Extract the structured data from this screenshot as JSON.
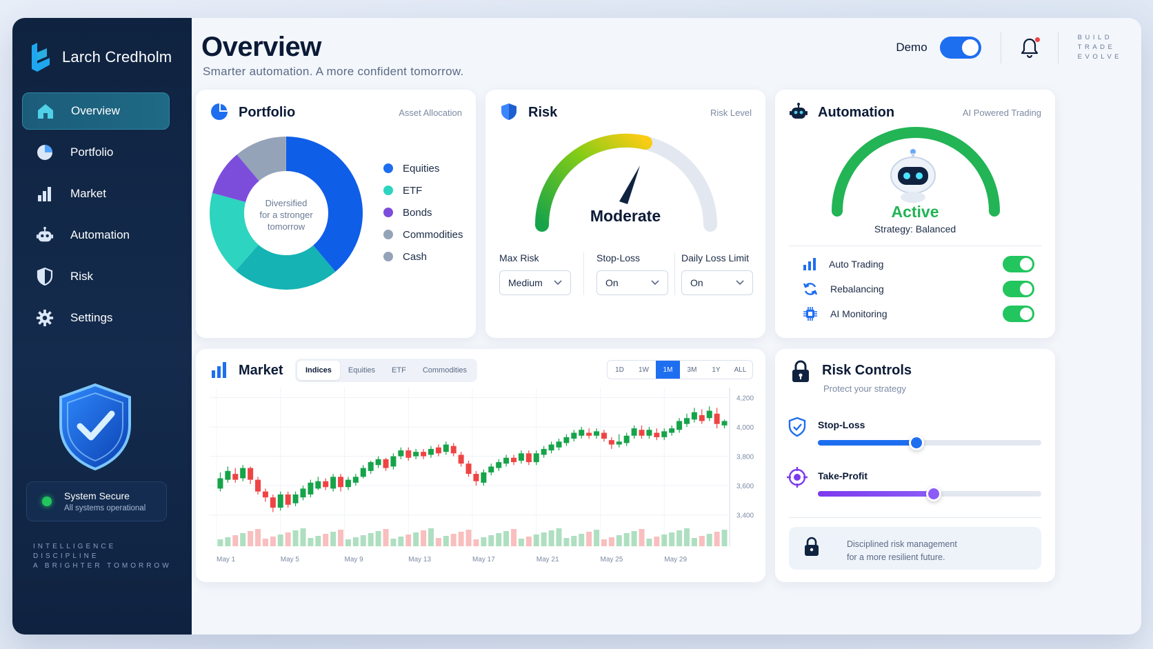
{
  "brand": {
    "name": "Larch Credholm"
  },
  "sidebar": {
    "items": [
      {
        "label": "Overview",
        "icon": "home-icon",
        "active": true
      },
      {
        "label": "Portfolio",
        "icon": "pie-chart-icon"
      },
      {
        "label": "Market",
        "icon": "bar-chart-icon"
      },
      {
        "label": "Automation",
        "icon": "robot-icon"
      },
      {
        "label": "Risk",
        "icon": "shield-icon"
      },
      {
        "label": "Settings",
        "icon": "gear-icon"
      }
    ],
    "status_title": "System Secure",
    "status_sub": "All systems operational",
    "tagline": [
      "INTELLIGENCE",
      "DISCIPLINE",
      "A BRIGHTER TOMORROW"
    ]
  },
  "header": {
    "title": "Overview",
    "subtitle": "Smarter automation. A more confident tomorrow.",
    "demo_label": "Demo",
    "demo_on": true,
    "motto": [
      "BUILD",
      "TRADE",
      "EVOLVE"
    ]
  },
  "portfolio": {
    "title": "Portfolio",
    "sub": "Asset Allocation",
    "center_text": [
      "Diversified",
      "for a stronger",
      "tomorrow"
    ],
    "legend": [
      {
        "label": "Equities",
        "color": "#1e6ef0"
      },
      {
        "label": "ETF",
        "color": "#2dd4bf"
      },
      {
        "label": "Bonds",
        "color": "#7c4ddb"
      },
      {
        "label": "Commodities",
        "color": "#94a3b8"
      },
      {
        "label": "Cash",
        "color": "#94a3b8"
      }
    ]
  },
  "risk": {
    "title": "Risk",
    "sub": "Risk Level",
    "level": "Moderate",
    "fields": [
      {
        "label": "Max Risk",
        "value": "Medium"
      },
      {
        "label": "Stop-Loss",
        "value": "On"
      },
      {
        "label": "Daily Loss Limit",
        "value": "On"
      }
    ]
  },
  "automation": {
    "title": "Automation",
    "sub": "AI Powered Trading",
    "status": "Active",
    "strategy": "Strategy: Balanced",
    "rows": [
      {
        "label": "Auto Trading",
        "icon": "bar-chart-icon",
        "on": true
      },
      {
        "label": "Rebalancing",
        "icon": "refresh-icon",
        "on": true
      },
      {
        "label": "AI Monitoring",
        "icon": "chip-icon",
        "on": true
      }
    ]
  },
  "market": {
    "title": "Market",
    "tabs": [
      "Indices",
      "Equities",
      "ETF",
      "Commodities"
    ],
    "active_tab": "Indices",
    "ranges": [
      "1D",
      "1W",
      "1M",
      "3M",
      "1Y",
      "ALL"
    ],
    "active_range": "1M"
  },
  "risk_controls": {
    "title": "Risk Controls",
    "sub": "Protect your strategy",
    "stop_loss_label": "Stop-Loss",
    "stop_loss_value": 0.44,
    "take_profit_label": "Take-Profit",
    "take_profit_value": 0.52,
    "note": [
      "Disciplined risk management",
      "for a more resilient future."
    ]
  },
  "chart_data": {
    "type": "candlestick",
    "title": "",
    "xlabel": "",
    "ylabel": "",
    "x_ticks": [
      "May 1",
      "May 5",
      "May 9",
      "May 13",
      "May 17",
      "May 21",
      "May 25",
      "May 29"
    ],
    "y_ticks": [
      "4,200",
      "4,000",
      "3,800",
      "3,600",
      "3,400"
    ],
    "ylim": [
      3300,
      4230
    ],
    "up_color": "#16a34a",
    "down_color": "#ef4444",
    "candles": [
      {
        "o": 3580,
        "c": 3650,
        "h": 3690,
        "l": 3560
      },
      {
        "o": 3640,
        "c": 3700,
        "h": 3730,
        "l": 3620
      },
      {
        "o": 3680,
        "c": 3640,
        "h": 3720,
        "l": 3620
      },
      {
        "o": 3650,
        "c": 3720,
        "h": 3740,
        "l": 3630
      },
      {
        "o": 3720,
        "c": 3640,
        "h": 3730,
        "l": 3610
      },
      {
        "o": 3640,
        "c": 3560,
        "h": 3660,
        "l": 3540
      },
      {
        "o": 3560,
        "c": 3520,
        "h": 3580,
        "l": 3490
      },
      {
        "o": 3520,
        "c": 3450,
        "h": 3540,
        "l": 3420
      },
      {
        "o": 3450,
        "c": 3540,
        "h": 3560,
        "l": 3430
      },
      {
        "o": 3540,
        "c": 3470,
        "h": 3560,
        "l": 3450
      },
      {
        "o": 3480,
        "c": 3540,
        "h": 3560,
        "l": 3460
      },
      {
        "o": 3520,
        "c": 3580,
        "h": 3600,
        "l": 3500
      },
      {
        "o": 3540,
        "c": 3620,
        "h": 3640,
        "l": 3520
      },
      {
        "o": 3580,
        "c": 3630,
        "h": 3660,
        "l": 3570
      },
      {
        "o": 3630,
        "c": 3590,
        "h": 3650,
        "l": 3570
      },
      {
        "o": 3580,
        "c": 3660,
        "h": 3680,
        "l": 3560
      },
      {
        "o": 3660,
        "c": 3590,
        "h": 3680,
        "l": 3560
      },
      {
        "o": 3590,
        "c": 3640,
        "h": 3660,
        "l": 3570
      },
      {
        "o": 3620,
        "c": 3660,
        "h": 3680,
        "l": 3600
      },
      {
        "o": 3660,
        "c": 3720,
        "h": 3740,
        "l": 3650
      },
      {
        "o": 3700,
        "c": 3760,
        "h": 3770,
        "l": 3680
      },
      {
        "o": 3740,
        "c": 3780,
        "h": 3800,
        "l": 3720
      },
      {
        "o": 3780,
        "c": 3720,
        "h": 3790,
        "l": 3700
      },
      {
        "o": 3730,
        "c": 3800,
        "h": 3820,
        "l": 3710
      },
      {
        "o": 3800,
        "c": 3840,
        "h": 3860,
        "l": 3780
      },
      {
        "o": 3840,
        "c": 3790,
        "h": 3860,
        "l": 3770
      },
      {
        "o": 3800,
        "c": 3830,
        "h": 3850,
        "l": 3780
      },
      {
        "o": 3830,
        "c": 3800,
        "h": 3850,
        "l": 3780
      },
      {
        "o": 3810,
        "c": 3850,
        "h": 3870,
        "l": 3790
      },
      {
        "o": 3860,
        "c": 3820,
        "h": 3880,
        "l": 3800
      },
      {
        "o": 3830,
        "c": 3880,
        "h": 3900,
        "l": 3810
      },
      {
        "o": 3870,
        "c": 3820,
        "h": 3890,
        "l": 3800
      },
      {
        "o": 3810,
        "c": 3750,
        "h": 3830,
        "l": 3730
      },
      {
        "o": 3750,
        "c": 3680,
        "h": 3770,
        "l": 3660
      },
      {
        "o": 3680,
        "c": 3630,
        "h": 3700,
        "l": 3600
      },
      {
        "o": 3620,
        "c": 3690,
        "h": 3710,
        "l": 3600
      },
      {
        "o": 3690,
        "c": 3730,
        "h": 3750,
        "l": 3670
      },
      {
        "o": 3720,
        "c": 3760,
        "h": 3780,
        "l": 3700
      },
      {
        "o": 3750,
        "c": 3790,
        "h": 3810,
        "l": 3730
      },
      {
        "o": 3790,
        "c": 3760,
        "h": 3810,
        "l": 3740
      },
      {
        "o": 3770,
        "c": 3820,
        "h": 3840,
        "l": 3750
      },
      {
        "o": 3820,
        "c": 3760,
        "h": 3840,
        "l": 3740
      },
      {
        "o": 3760,
        "c": 3820,
        "h": 3840,
        "l": 3740
      },
      {
        "o": 3810,
        "c": 3850,
        "h": 3870,
        "l": 3790
      },
      {
        "o": 3840,
        "c": 3880,
        "h": 3900,
        "l": 3820
      },
      {
        "o": 3860,
        "c": 3900,
        "h": 3920,
        "l": 3840
      },
      {
        "o": 3890,
        "c": 3930,
        "h": 3950,
        "l": 3870
      },
      {
        "o": 3920,
        "c": 3960,
        "h": 3980,
        "l": 3900
      },
      {
        "o": 3940,
        "c": 3980,
        "h": 4000,
        "l": 3920
      },
      {
        "o": 3960,
        "c": 3940,
        "h": 3990,
        "l": 3920
      },
      {
        "o": 3940,
        "c": 3970,
        "h": 3990,
        "l": 3920
      },
      {
        "o": 3960,
        "c": 3920,
        "h": 3980,
        "l": 3900
      },
      {
        "o": 3910,
        "c": 3880,
        "h": 3930,
        "l": 3850
      },
      {
        "o": 3880,
        "c": 3900,
        "h": 3950,
        "l": 3860
      },
      {
        "o": 3890,
        "c": 3940,
        "h": 3960,
        "l": 3870
      },
      {
        "o": 3940,
        "c": 3990,
        "h": 4010,
        "l": 3920
      },
      {
        "o": 3980,
        "c": 3940,
        "h": 4010,
        "l": 3920
      },
      {
        "o": 3940,
        "c": 3980,
        "h": 4000,
        "l": 3920
      },
      {
        "o": 3960,
        "c": 3930,
        "h": 3990,
        "l": 3910
      },
      {
        "o": 3930,
        "c": 3970,
        "h": 3990,
        "l": 3910
      },
      {
        "o": 3960,
        "c": 3990,
        "h": 4010,
        "l": 3940
      },
      {
        "o": 3980,
        "c": 4040,
        "h": 4060,
        "l": 3960
      },
      {
        "o": 4020,
        "c": 4060,
        "h": 4090,
        "l": 4000
      },
      {
        "o": 4050,
        "c": 4100,
        "h": 4130,
        "l": 4030
      },
      {
        "o": 4080,
        "c": 4040,
        "h": 4120,
        "l": 4020
      },
      {
        "o": 4060,
        "c": 4110,
        "h": 4140,
        "l": 4040
      },
      {
        "o": 4090,
        "c": 4020,
        "h": 4130,
        "l": 3990
      },
      {
        "o": 4010,
        "c": 4040,
        "h": 4050,
        "l": 3990
      }
    ]
  }
}
